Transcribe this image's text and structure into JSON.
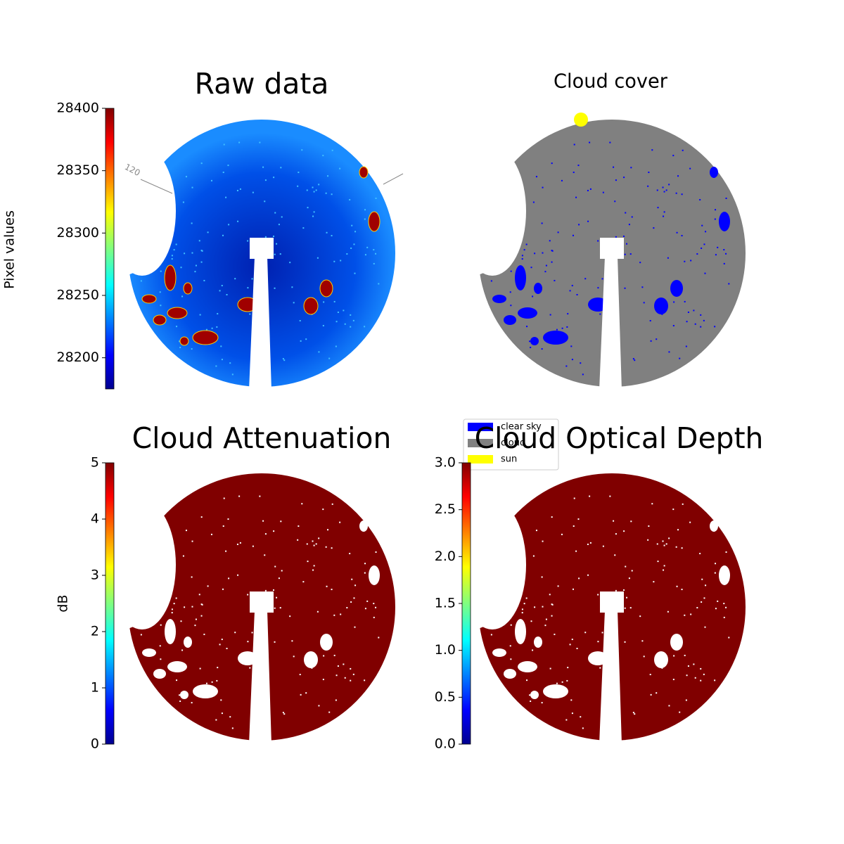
{
  "chart_data": [
    {
      "type": "image",
      "title": "Raw data",
      "colorbar_label": "Pixel values",
      "ylim": [
        28175,
        28400
      ],
      "yticks": [
        28200,
        28250,
        28300,
        28350,
        28400
      ],
      "annotation": "120"
    },
    {
      "type": "image",
      "title": "Cloud cover",
      "series": [
        {
          "name": "clear sky",
          "color": "#0000ff"
        },
        {
          "name": "cloud",
          "color": "#808080"
        },
        {
          "name": "sun",
          "color": "#ffff00"
        }
      ]
    },
    {
      "type": "image",
      "title": "Cloud Attenuation",
      "colorbar_label": "dB",
      "ylim": [
        0,
        5
      ],
      "yticks": [
        0,
        1,
        2,
        3,
        4,
        5
      ]
    },
    {
      "type": "image",
      "title": "Cloud Optical Depth",
      "ylim": [
        0,
        3
      ],
      "yticks": [
        {
          "value": 0,
          "label": "0.0"
        },
        0.5,
        {
          "value": 1,
          "label": "1.0"
        },
        1.5,
        {
          "value": 2,
          "label": "2.0"
        },
        2.5,
        {
          "value": 3,
          "label": "3.0"
        }
      ]
    }
  ]
}
